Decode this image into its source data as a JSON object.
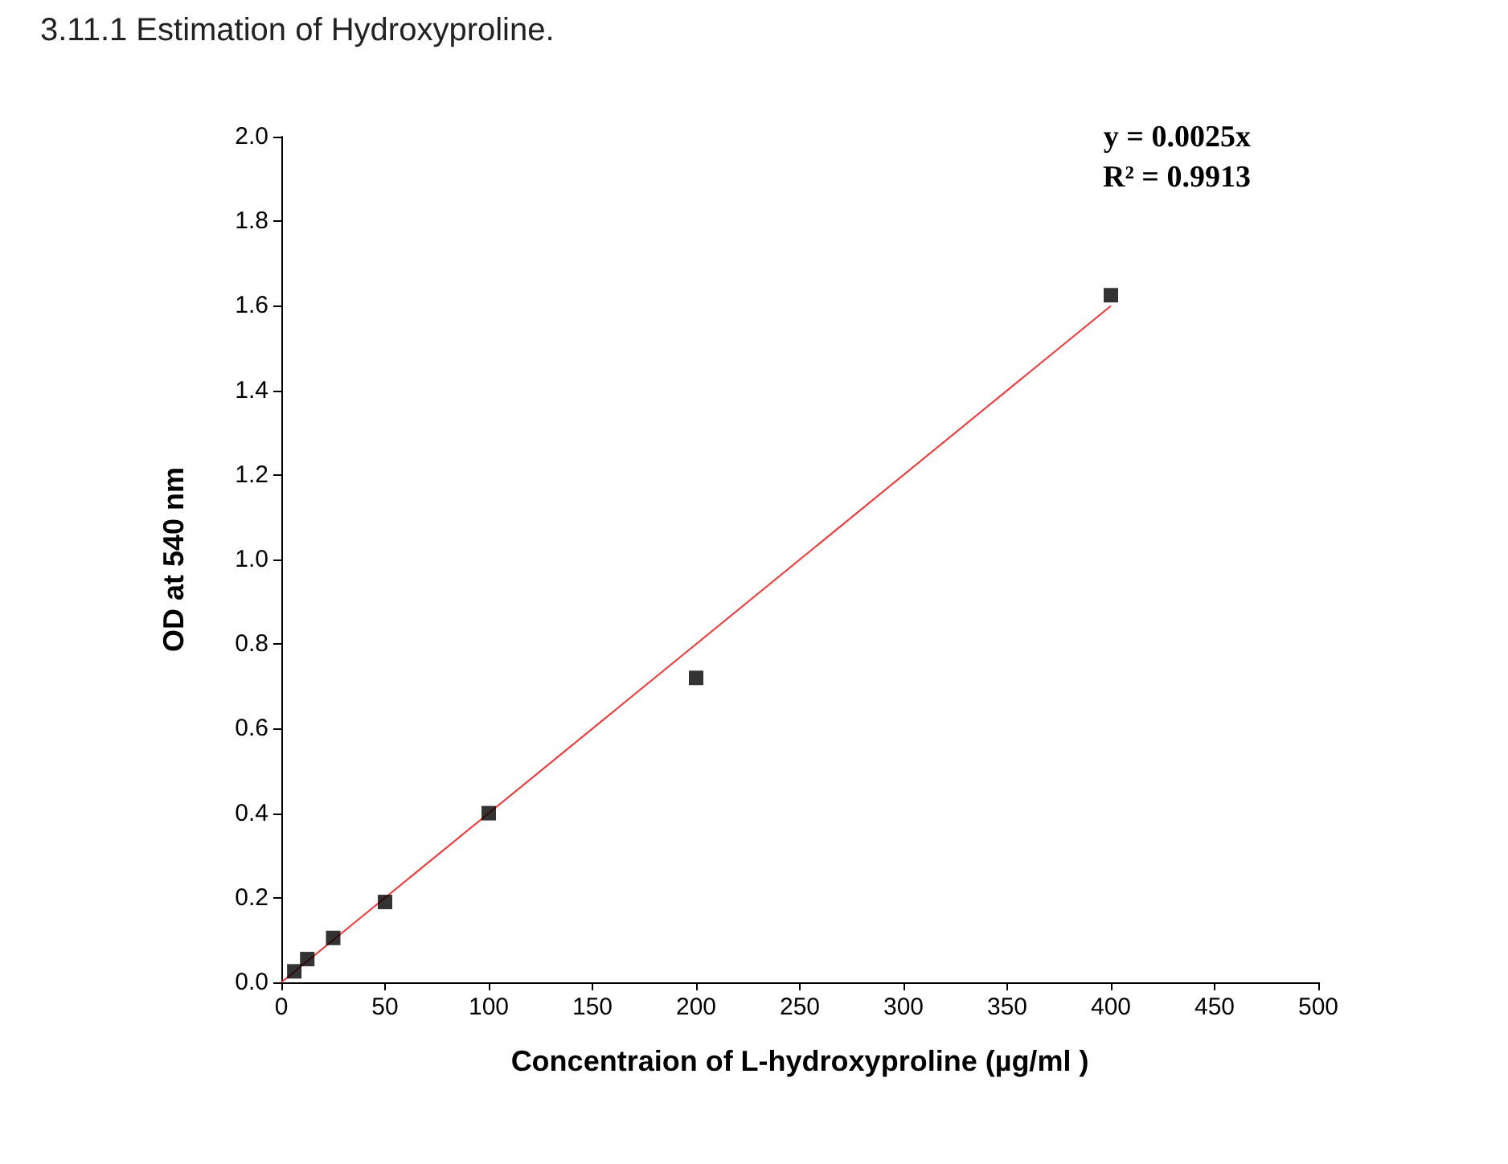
{
  "chart_data": {
    "type": "scatter",
    "title": "3.11.1 Estimation of Hydroxyproline.",
    "xlabel": "Concentraion of L-hydroxyproline (µg/ml )",
    "ylabel": "OD at 540 nm",
    "annotations": [
      "y = 0.0025x",
      "R² = 0.9913"
    ],
    "x": [
      6.25,
      12.5,
      25,
      50,
      100,
      200,
      400
    ],
    "series": [
      {
        "color": "#000000",
        "marker": "square",
        "values": [
          0.026,
          0.055,
          0.105,
          0.19,
          0.4,
          0.72,
          1.625
        ]
      },
      {
        "type": "line",
        "color": "#ff3030",
        "marker": "none",
        "x": [
          0,
          400
        ],
        "values": [
          0,
          1.6
        ]
      }
    ],
    "xlim": [
      0,
      500
    ],
    "xticks": [
      0,
      50,
      100,
      150,
      200,
      250,
      300,
      350,
      400,
      450,
      500
    ],
    "ylim": [
      0,
      2.0
    ],
    "yticks": [
      {
        "value": 0,
        "label": "0.0"
      },
      {
        "value": 0.2,
        "label": "0.2"
      },
      {
        "value": 0.4,
        "label": "0.4"
      },
      {
        "value": 0.6,
        "label": "0.6"
      },
      {
        "value": 0.8,
        "label": "0.8"
      },
      {
        "value": 1.0,
        "label": "1.0"
      },
      {
        "value": 1.2,
        "label": "1.2"
      },
      {
        "value": 1.4,
        "label": "1.4"
      },
      {
        "value": 1.6,
        "label": "1.6"
      },
      {
        "value": 1.8,
        "label": "1.8"
      },
      {
        "value": 2.0,
        "label": "2.0"
      }
    ],
    "grid": false
  }
}
